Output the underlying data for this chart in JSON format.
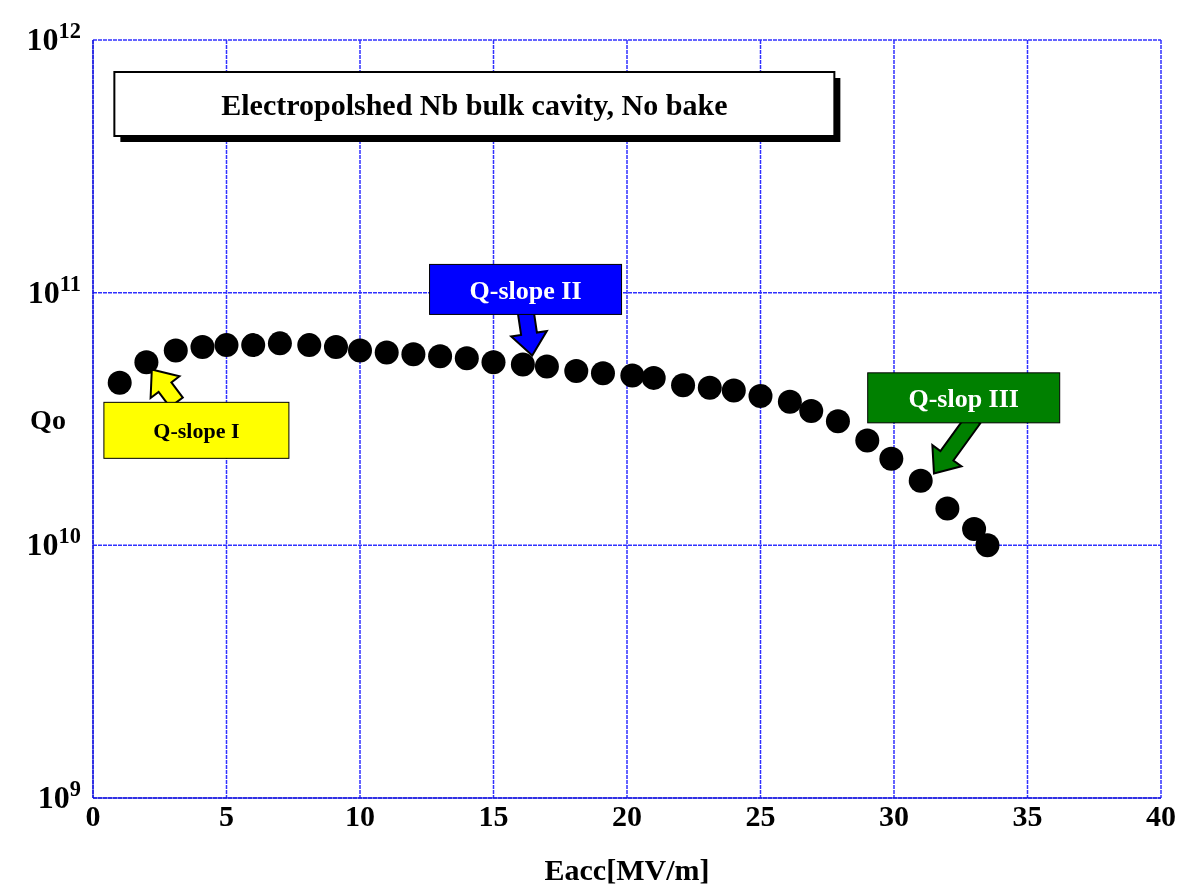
{
  "chart_data": {
    "type": "scatter",
    "title": "Electropolshed Nb bulk cavity, No bake",
    "xlabel": "Eacc[MV/m]",
    "ylabel": "Qo",
    "x": [
      1.0,
      2.0,
      3.1,
      4.1,
      5.0,
      6.0,
      7.0,
      8.1,
      9.1,
      10.0,
      11.0,
      12.0,
      13.0,
      14.0,
      15.0,
      16.1,
      17.0,
      18.1,
      19.1,
      20.2,
      21.0,
      22.1,
      23.1,
      24.0,
      25.0,
      26.1,
      26.9,
      27.9,
      29.0,
      29.9,
      31.0,
      32.0,
      33.0,
      33.5
    ],
    "series": [
      {
        "color": "#000000",
        "values": [
          44000000000.0,
          53000000000.0,
          59000000000.0,
          61000000000.0,
          62000000000.0,
          62000000000.0,
          63000000000.0,
          62000000000.0,
          61000000000.0,
          59000000000.0,
          58000000000.0,
          57000000000.0,
          56000000000.0,
          55000000000.0,
          53000000000.0,
          52000000000.0,
          51000000000.0,
          49000000000.0,
          48000000000.0,
          47000000000.0,
          46000000000.0,
          43000000000.0,
          42000000000.0,
          41000000000.0,
          39000000000.0,
          37000000000.0,
          34000000000.0,
          31000000000.0,
          26000000000.0,
          22000000000.0,
          18000000000.0,
          14000000000.0,
          11600000000.0,
          10000000000.0
        ]
      }
    ],
    "xlim": [
      0,
      40
    ],
    "xticks": [
      0,
      5,
      10,
      15,
      20,
      25,
      30,
      35,
      40
    ],
    "ylim": [
      1000000000.0,
      1000000000000.0
    ],
    "log": true,
    "yticks": [
      {
        "value": 1000000000.0,
        "label": "10$^{9}$"
      },
      {
        "value": 10000000000.0,
        "label": "10$^{10}$"
      },
      {
        "value": 100000000000.0,
        "label": "10$^{11}$"
      },
      {
        "value": 1000000000000.0,
        "label": "10$^{12}$"
      }
    ],
    "grid": true,
    "legend": false,
    "marker": "circle",
    "annotations": [
      {
        "text": "Q-slope I",
        "x": 2,
        "y": 53000000000.0
      },
      {
        "text": "Q-slope II",
        "x": 16.5,
        "y": 52000000000.0
      },
      {
        "text": "Q-slop III",
        "x": 31.3,
        "y": 18000000000.0
      }
    ]
  }
}
